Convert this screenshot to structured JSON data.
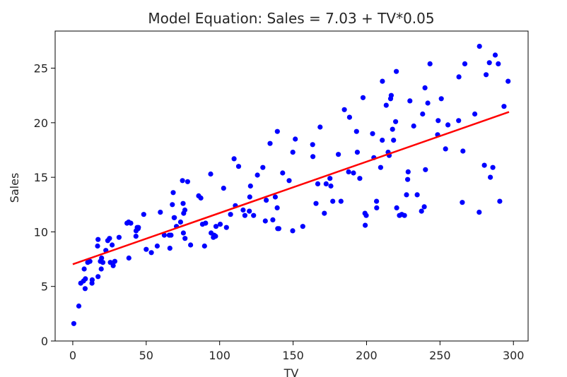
{
  "chart_data": {
    "type": "scatter",
    "title": "Model Equation: Sales = 7.03 + TV*0.05",
    "xlabel": "TV",
    "ylabel": "Sales",
    "xlim": [
      -12,
      310
    ],
    "ylim": [
      0,
      28.4
    ],
    "xticks": [
      0,
      50,
      100,
      150,
      200,
      250,
      300
    ],
    "yticks": [
      0,
      5,
      10,
      15,
      20,
      25
    ],
    "grid": false,
    "legend": "none",
    "colors": {
      "points": "#0000ff",
      "line": "#ff0000",
      "axes": "#000000"
    },
    "fit_line": {
      "intercept": 7.03,
      "slope": 0.047,
      "x": [
        0,
        297
      ]
    },
    "points": [
      [
        0.7,
        1.6
      ],
      [
        4.1,
        3.2
      ],
      [
        5.4,
        5.3
      ],
      [
        7.3,
        5.5
      ],
      [
        7.8,
        6.6
      ],
      [
        8.4,
        4.8
      ],
      [
        8.6,
        5.7
      ],
      [
        10.2,
        7.2
      ],
      [
        11.7,
        7.3
      ],
      [
        13.1,
        5.3
      ],
      [
        13.2,
        5.6
      ],
      [
        16.9,
        8.7
      ],
      [
        17.2,
        9.3
      ],
      [
        17.2,
        5.9
      ],
      [
        18.8,
        7.3
      ],
      [
        19.4,
        6.6
      ],
      [
        19.6,
        7.6
      ],
      [
        20.5,
        7.2
      ],
      [
        22.5,
        8.3
      ],
      [
        23.8,
        9.2
      ],
      [
        25.0,
        9.4
      ],
      [
        25.6,
        7.2
      ],
      [
        26.8,
        8.8
      ],
      [
        27.5,
        6.9
      ],
      [
        28.6,
        7.3
      ],
      [
        31.5,
        9.5
      ],
      [
        36.9,
        10.8
      ],
      [
        38.0,
        10.9
      ],
      [
        38.2,
        7.6
      ],
      [
        39.5,
        10.8
      ],
      [
        43.0,
        9.6
      ],
      [
        43.1,
        10.1
      ],
      [
        43.9,
        10.4
      ],
      [
        44.5,
        10.3
      ],
      [
        44.7,
        10.4
      ],
      [
        48.3,
        11.6
      ],
      [
        50.0,
        8.4
      ],
      [
        53.5,
        8.1
      ],
      [
        57.5,
        8.7
      ],
      [
        59.6,
        11.8
      ],
      [
        62.3,
        9.7
      ],
      [
        65.7,
        9.7
      ],
      [
        66.1,
        8.5
      ],
      [
        66.9,
        9.7
      ],
      [
        67.8,
        12.5
      ],
      [
        68.4,
        13.6
      ],
      [
        69.0,
        11.3
      ],
      [
        69.2,
        11.3
      ],
      [
        70.6,
        10.5
      ],
      [
        73.4,
        10.9
      ],
      [
        74.7,
        14.7
      ],
      [
        75.1,
        12.6
      ],
      [
        75.3,
        9.9
      ],
      [
        75.5,
        11.7
      ],
      [
        76.3,
        12.0
      ],
      [
        76.4,
        9.4
      ],
      [
        78.2,
        14.6
      ],
      [
        80.2,
        8.8
      ],
      [
        85.7,
        13.3
      ],
      [
        87.2,
        13.1
      ],
      [
        88.3,
        10.7
      ],
      [
        89.7,
        8.7
      ],
      [
        90.4,
        10.8
      ],
      [
        93.9,
        15.3
      ],
      [
        94.2,
        9.9
      ],
      [
        95.7,
        9.5
      ],
      [
        96.2,
        9.7
      ],
      [
        97.2,
        9.6
      ],
      [
        97.5,
        10.5
      ],
      [
        100.4,
        10.7
      ],
      [
        102.7,
        14.0
      ],
      [
        104.6,
        10.4
      ],
      [
        107.4,
        11.6
      ],
      [
        109.8,
        16.7
      ],
      [
        110.7,
        12.4
      ],
      [
        112.9,
        16.0
      ],
      [
        116.0,
        12.0
      ],
      [
        117.2,
        11.5
      ],
      [
        120.2,
        11.9
      ],
      [
        120.5,
        13.2
      ],
      [
        121.0,
        14.2
      ],
      [
        123.1,
        11.5
      ],
      [
        125.7,
        15.2
      ],
      [
        129.4,
        15.9
      ],
      [
        131.1,
        11.0
      ],
      [
        131.7,
        12.9
      ],
      [
        134.3,
        18.1
      ],
      [
        136.2,
        11.1
      ],
      [
        137.9,
        13.2
      ],
      [
        139.2,
        12.2
      ],
      [
        139.3,
        19.2
      ],
      [
        139.5,
        10.3
      ],
      [
        140.3,
        10.3
      ],
      [
        142.9,
        15.4
      ],
      [
        147.3,
        14.7
      ],
      [
        149.7,
        10.1
      ],
      [
        149.8,
        17.3
      ],
      [
        151.5,
        18.5
      ],
      [
        156.6,
        10.5
      ],
      [
        163.3,
        18.0
      ],
      [
        163.5,
        16.9
      ],
      [
        165.6,
        12.6
      ],
      [
        166.8,
        14.4
      ],
      [
        168.4,
        19.6
      ],
      [
        171.3,
        11.7
      ],
      [
        172.5,
        14.4
      ],
      [
        175.1,
        14.9
      ],
      [
        175.7,
        14.2
      ],
      [
        177.0,
        12.8
      ],
      [
        180.8,
        17.1
      ],
      [
        182.6,
        12.8
      ],
      [
        184.9,
        21.2
      ],
      [
        187.8,
        15.5
      ],
      [
        188.4,
        20.5
      ],
      [
        191.1,
        15.4
      ],
      [
        193.2,
        19.2
      ],
      [
        193.7,
        17.3
      ],
      [
        195.4,
        14.9
      ],
      [
        197.6,
        22.3
      ],
      [
        198.9,
        11.7
      ],
      [
        199.1,
        10.6
      ],
      [
        199.8,
        11.5
      ],
      [
        204.1,
        19.0
      ],
      [
        205.0,
        16.8
      ],
      [
        206.8,
        12.8
      ],
      [
        206.9,
        12.2
      ],
      [
        209.6,
        15.9
      ],
      [
        210.7,
        18.4
      ],
      [
        210.8,
        23.8
      ],
      [
        213.4,
        21.6
      ],
      [
        214.7,
        17.3
      ],
      [
        215.4,
        17.0
      ],
      [
        216.4,
        22.2
      ],
      [
        216.8,
        22.5
      ],
      [
        217.7,
        19.4
      ],
      [
        218.4,
        18.4
      ],
      [
        219.8,
        20.1
      ],
      [
        220.3,
        24.7
      ],
      [
        220.5,
        12.2
      ],
      [
        222.4,
        11.5
      ],
      [
        224.0,
        11.6
      ],
      [
        225.8,
        11.5
      ],
      [
        227.2,
        13.4
      ],
      [
        228.0,
        14.8
      ],
      [
        228.3,
        15.5
      ],
      [
        229.5,
        22.0
      ],
      [
        232.1,
        19.7
      ],
      [
        234.5,
        13.4
      ],
      [
        237.4,
        11.9
      ],
      [
        238.2,
        20.8
      ],
      [
        239.3,
        12.3
      ],
      [
        239.8,
        23.2
      ],
      [
        240.1,
        15.7
      ],
      [
        241.7,
        21.8
      ],
      [
        243.2,
        25.4
      ],
      [
        248.4,
        18.9
      ],
      [
        248.8,
        20.2
      ],
      [
        250.9,
        22.2
      ],
      [
        253.8,
        17.6
      ],
      [
        255.4,
        19.8
      ],
      [
        262.7,
        20.2
      ],
      [
        262.9,
        24.2
      ],
      [
        265.2,
        12.7
      ],
      [
        265.6,
        17.4
      ],
      [
        266.9,
        25.4
      ],
      [
        273.7,
        20.8
      ],
      [
        276.7,
        11.8
      ],
      [
        276.9,
        27.0
      ],
      [
        280.2,
        16.1
      ],
      [
        281.4,
        24.4
      ],
      [
        283.6,
        25.5
      ],
      [
        284.3,
        15.0
      ],
      [
        286.0,
        15.9
      ],
      [
        287.6,
        26.2
      ],
      [
        289.7,
        25.4
      ],
      [
        290.7,
        12.8
      ],
      [
        293.6,
        21.5
      ],
      [
        296.4,
        23.8
      ]
    ]
  }
}
